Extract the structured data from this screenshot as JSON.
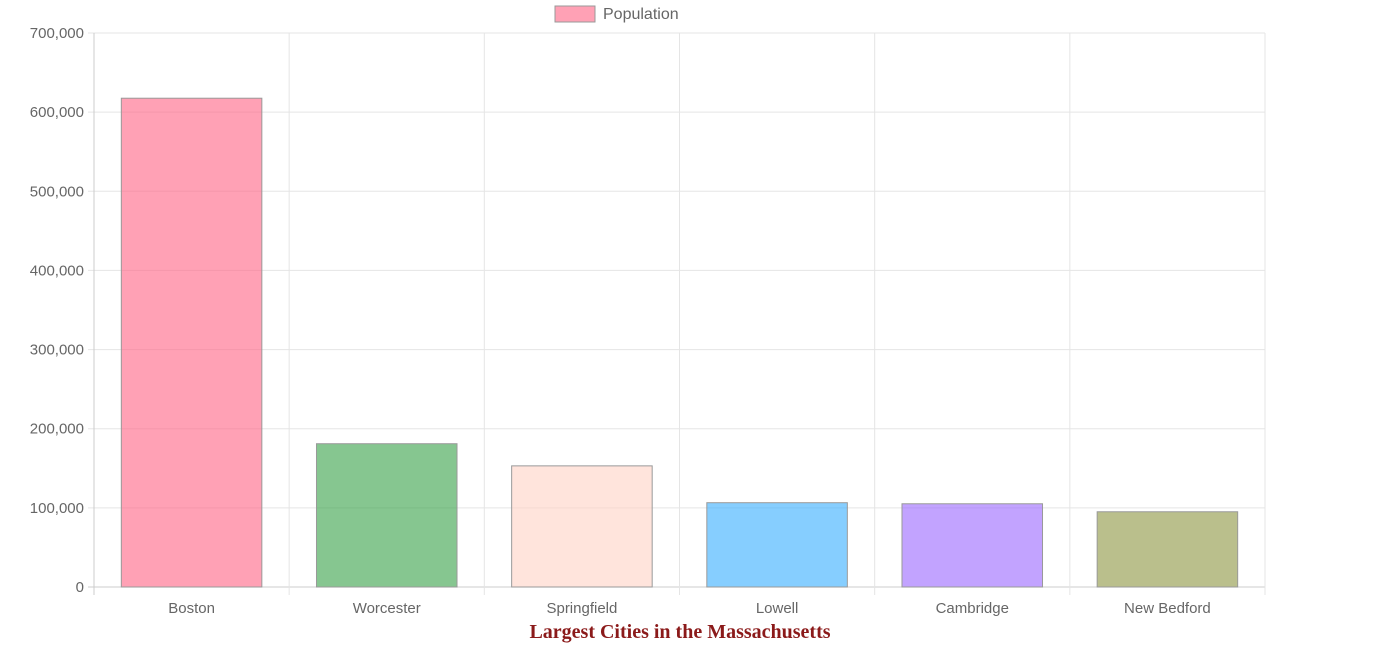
{
  "chart_data": {
    "type": "bar",
    "title": "Largest Cities in the Massachusetts",
    "title_color": "#8b1a1a",
    "legend_position": "top",
    "xlabel": "",
    "ylabel": "",
    "categories": [
      "Boston",
      "Worcester",
      "Springfield",
      "Lowell",
      "Cambridge",
      "New Bedford"
    ],
    "series": [
      {
        "name": "Population",
        "values": [
          617594,
          181045,
          153060,
          106519,
          105162,
          95072
        ]
      }
    ],
    "bar_colors": [
      "#ff6384",
      "#36a046",
      "#ffd2c4",
      "#36aeff",
      "#9966ff",
      "#8c9440"
    ],
    "legend_swatch_color": "#ff6384",
    "ylim": [
      0,
      700000
    ],
    "y_ticks": [
      "0",
      "100,000",
      "200,000",
      "300,000",
      "400,000",
      "500,000",
      "600,000",
      "700,000"
    ],
    "grid": true
  }
}
